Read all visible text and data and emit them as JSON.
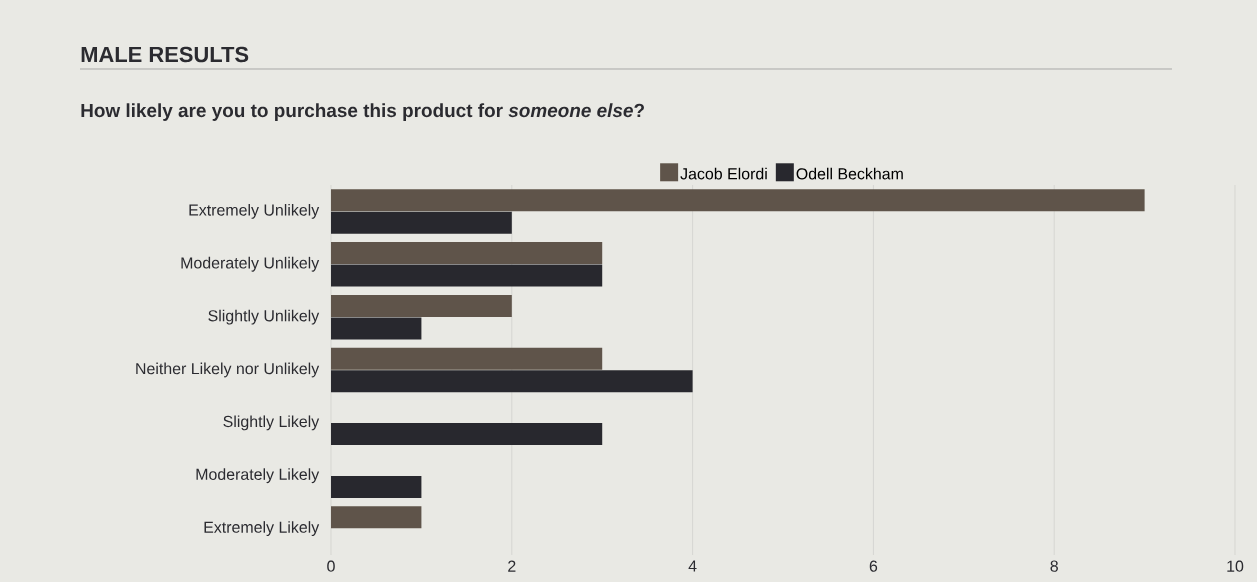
{
  "chart_data": {
    "type": "bar",
    "orientation": "horizontal",
    "title": "MALE RESULTS",
    "subtitle": "How likely are you to purchase this product for *someone else*?",
    "categories": [
      "Extremely Unlikely",
      "Moderately Unlikely",
      "Slightly Unlikely",
      "Neither Likely nor Unlikely",
      "Slightly Likely",
      "Moderately Likely",
      "Extremely Likely"
    ],
    "series": [
      {
        "name": "Jacob Elordi",
        "color": "#5f544a",
        "values": [
          9,
          3,
          2,
          3,
          0,
          0,
          1
        ]
      },
      {
        "name": "Odell Beckham",
        "color": "#28282e",
        "values": [
          2,
          3,
          1,
          4,
          3,
          1,
          0
        ]
      }
    ],
    "xlim": [
      0,
      10
    ],
    "xticks": [
      0,
      2,
      4,
      6,
      8,
      10
    ],
    "grid": "x",
    "legend": "top"
  }
}
